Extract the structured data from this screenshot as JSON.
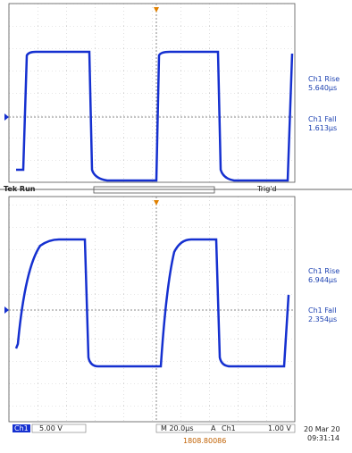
{
  "top_panel": {
    "measurements": [
      {
        "label": "Ch1 Rise",
        "value": "5.640µs"
      },
      {
        "label": "Ch1 Fall",
        "value": "1.613µs"
      }
    ]
  },
  "status_bar": {
    "state": "Tek Run",
    "trigger": "Trig'd"
  },
  "bottom_panel": {
    "measurements": [
      {
        "label": "Ch1 Rise",
        "value": "6.944µs"
      },
      {
        "label": "Ch1 Fall",
        "value": "2.354µs"
      }
    ]
  },
  "footer": {
    "channel": "Ch1",
    "scale": "5.00 V",
    "timebase": "M 20.0µs",
    "trigger_mode": "A",
    "trigger_source": "Ch1",
    "trigger_level": "1.00 V",
    "position": "1808.80086",
    "date": "20 Mar 20",
    "time": "09:31:14"
  }
}
